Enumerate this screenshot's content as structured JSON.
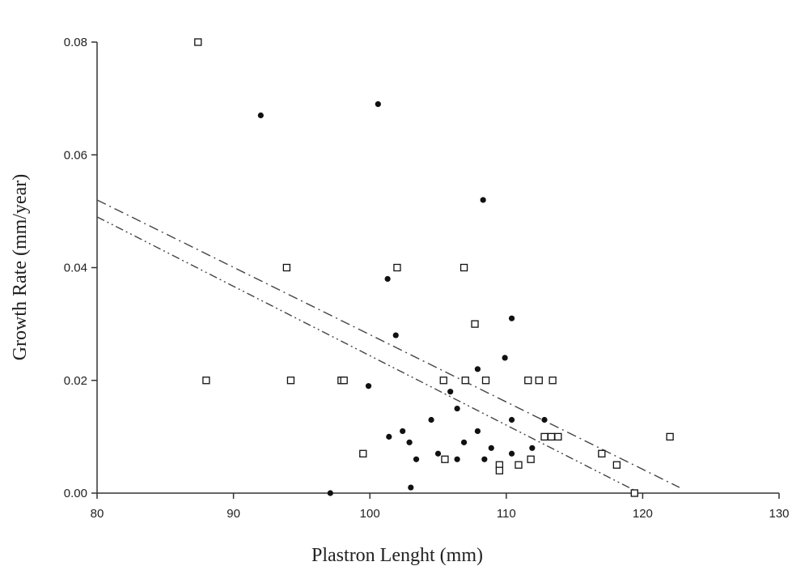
{
  "chart_data": {
    "type": "scatter",
    "xlabel": "Plastron Lenght (mm)",
    "ylabel": "Growth Rate (mm/year)",
    "xlim": [
      80,
      130
    ],
    "ylim": [
      0,
      0.08
    ],
    "x_ticks": [
      "80",
      "90",
      "100",
      "110",
      "120",
      "130"
    ],
    "y_ticks": [
      "0.00",
      "0.02",
      "0.04",
      "0.06",
      "0.08"
    ],
    "grid": false,
    "series": [
      {
        "marker": "filled-circle",
        "color": "#111111",
        "points": [
          [
            92.0,
            0.067
          ],
          [
            100.6,
            0.069
          ],
          [
            108.3,
            0.052
          ],
          [
            101.3,
            0.038
          ],
          [
            110.4,
            0.031
          ],
          [
            101.9,
            0.028
          ],
          [
            109.9,
            0.024
          ],
          [
            107.9,
            0.022
          ],
          [
            99.9,
            0.019
          ],
          [
            105.9,
            0.018
          ],
          [
            106.4,
            0.015
          ],
          [
            104.5,
            0.013
          ],
          [
            110.4,
            0.013
          ],
          [
            112.8,
            0.013
          ],
          [
            102.4,
            0.011
          ],
          [
            107.9,
            0.011
          ],
          [
            101.4,
            0.01
          ],
          [
            102.9,
            0.009
          ],
          [
            106.9,
            0.009
          ],
          [
            108.9,
            0.008
          ],
          [
            111.9,
            0.008
          ],
          [
            105.0,
            0.007
          ],
          [
            110.4,
            0.007
          ],
          [
            103.4,
            0.006
          ],
          [
            106.4,
            0.006
          ],
          [
            108.4,
            0.006
          ],
          [
            103.0,
            0.001
          ],
          [
            97.1,
            0.0
          ]
        ]
      },
      {
        "marker": "open-square",
        "color": "#111111",
        "points": [
          [
            87.4,
            0.08
          ],
          [
            93.9,
            0.04
          ],
          [
            102.0,
            0.04
          ],
          [
            106.9,
            0.04
          ],
          [
            107.7,
            0.03
          ],
          [
            88.0,
            0.02
          ],
          [
            94.2,
            0.02
          ],
          [
            97.9,
            0.02
          ],
          [
            98.1,
            0.02
          ],
          [
            105.4,
            0.02
          ],
          [
            107.0,
            0.02
          ],
          [
            108.5,
            0.02
          ],
          [
            111.6,
            0.02
          ],
          [
            112.4,
            0.02
          ],
          [
            113.4,
            0.02
          ],
          [
            112.8,
            0.01
          ],
          [
            113.3,
            0.01
          ],
          [
            113.8,
            0.01
          ],
          [
            122.0,
            0.01
          ],
          [
            99.5,
            0.007
          ],
          [
            117.0,
            0.007
          ],
          [
            105.5,
            0.006
          ],
          [
            111.8,
            0.006
          ],
          [
            109.5,
            0.005
          ],
          [
            110.9,
            0.005
          ],
          [
            118.1,
            0.005
          ],
          [
            109.5,
            0.004
          ],
          [
            119.4,
            0.0
          ]
        ]
      }
    ],
    "trend_lines": [
      {
        "style": "dash-dot",
        "x": [
          80,
          122.7
        ],
        "y": [
          0.052,
          0.001
        ]
      },
      {
        "style": "dash-dot-dot",
        "x": [
          80,
          119.8
        ],
        "y": [
          0.049,
          0.0
        ]
      }
    ]
  }
}
